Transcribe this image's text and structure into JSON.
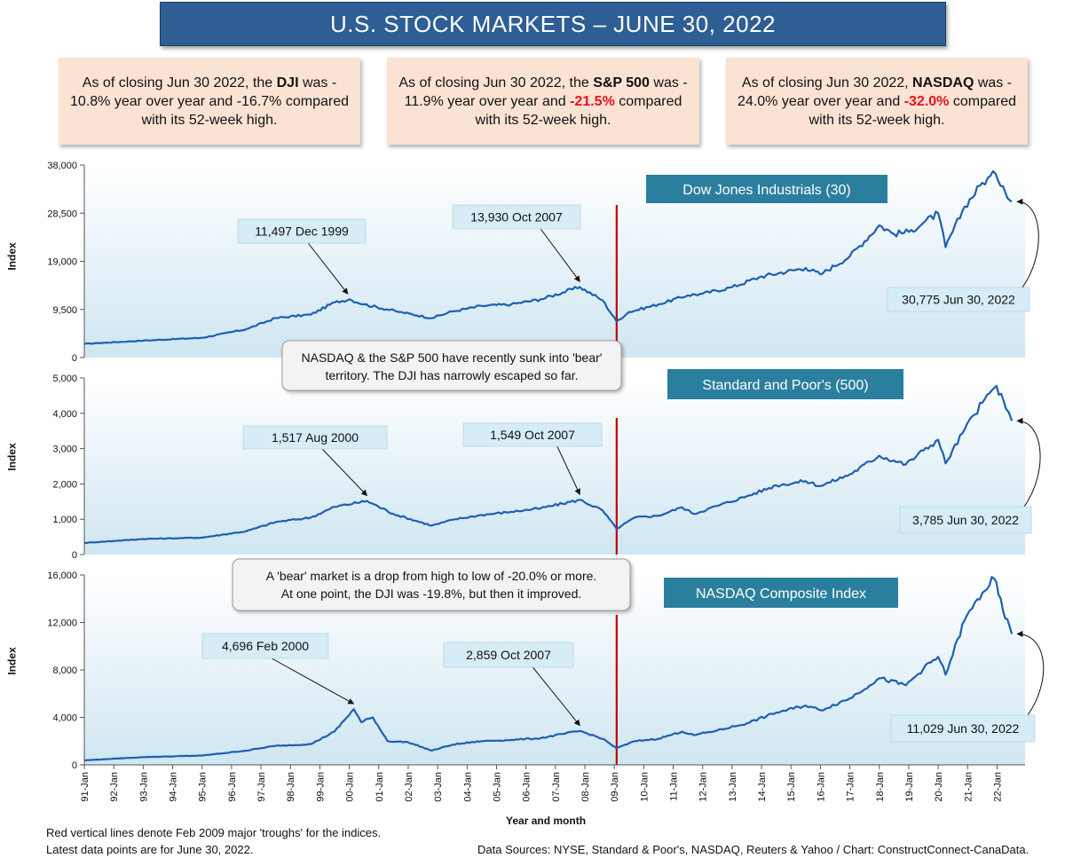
{
  "title": "U.S. STOCK MARKETS – JUNE 30, 2022",
  "notes": [
    {
      "pre": "As of closing Jun 30 2022, the ",
      "bold": "DJI",
      "mid": " was     - 10.8% year over year and ",
      "neg": "-16.7%",
      "post": " compared with its 52-week high.",
      "neg_red": false
    },
    {
      "pre": "As of closing Jun 30 2022, the ",
      "bold": "S&P 500",
      "mid": " was - 11.9% year over year and ",
      "neg": "-21.5%",
      "post": " compared with its 52-week high.",
      "neg_red": true
    },
    {
      "pre": "As of closing Jun 30 2022, ",
      "bold": "NASDAQ",
      "mid": " was - 24.0% year over year and ",
      "neg": "-32.0%",
      "post": " compared with its 52-week high.",
      "neg_red": true
    }
  ],
  "colors": {
    "line": "#1f5fb0",
    "trough": "#c00000",
    "plot_top": "#ffffff",
    "plot_bottom": "#cfe6f1",
    "label_box": "#d6ecf6",
    "title_box": "#2b7f9e"
  },
  "footer": {
    "left1": "Red vertical lines denote Feb 2009 major 'troughs' for the indices.",
    "left2": "Latest data points are for June 30, 2022.",
    "right": "Data Sources:  NYSE, Standard & Poor's, NASDAQ, Reuters & Yahoo / Chart: ConstructConnect-CanaData."
  },
  "chart_data": [
    {
      "type": "line",
      "title": "Dow Jones Industrials (30)",
      "ylabel": "Index",
      "xlabel": "Year and month",
      "ylim": [
        0,
        38000
      ],
      "yticks": [
        "38,000",
        "28,500",
        "19,000",
        "9,500",
        "0"
      ],
      "trough_x": 2009.08,
      "x_range": [
        1991.0,
        2022.5
      ],
      "anchors": [
        [
          1991.0,
          2700
        ],
        [
          1993.0,
          3350
        ],
        [
          1995.0,
          3900
        ],
        [
          1996.5,
          5600
        ],
        [
          1997.5,
          7800
        ],
        [
          1998.7,
          8500
        ],
        [
          1999.5,
          10900
        ],
        [
          2000.0,
          11497
        ],
        [
          2000.5,
          10500
        ],
        [
          2001.7,
          9000
        ],
        [
          2002.8,
          7800
        ],
        [
          2003.5,
          9100
        ],
        [
          2004.5,
          10200
        ],
        [
          2005.5,
          10500
        ],
        [
          2006.5,
          11500
        ],
        [
          2007.83,
          13930
        ],
        [
          2008.6,
          11300
        ],
        [
          2009.08,
          7100
        ],
        [
          2009.5,
          9000
        ],
        [
          2010.5,
          10500
        ],
        [
          2011.5,
          12300
        ],
        [
          2012.0,
          12600
        ],
        [
          2013.0,
          13900
        ],
        [
          2014.0,
          16000
        ],
        [
          2015.5,
          17700
        ],
        [
          2016.0,
          16400
        ],
        [
          2017.0,
          20000
        ],
        [
          2018.0,
          26100
        ],
        [
          2018.5,
          24400
        ],
        [
          2019.0,
          24800
        ],
        [
          2019.5,
          26600
        ],
        [
          2020.0,
          28500
        ],
        [
          2020.25,
          21800
        ],
        [
          2020.9,
          29800
        ],
        [
          2021.5,
          34500
        ],
        [
          2021.95,
          36300
        ],
        [
          2022.2,
          33800
        ],
        [
          2022.5,
          30775
        ]
      ],
      "labels": [
        {
          "text": "11,497 Dec 1999",
          "x": 1999.95,
          "y": 11497
        },
        {
          "text": "13,930 Oct 2007",
          "x": 2007.83,
          "y": 13930
        },
        {
          "text": "30,775 Jun 30, 2022",
          "x": 2022.5,
          "y": 30775
        }
      ]
    },
    {
      "type": "line",
      "title": "Standard and Poor's (500)",
      "ylabel": "Index",
      "ylim": [
        0,
        5000
      ],
      "yticks": [
        "5,000",
        "4,000",
        "3,000",
        "2,000",
        "1,000",
        "0"
      ],
      "trough_x": 2009.08,
      "x_range": [
        1991.0,
        2022.5
      ],
      "anchors": [
        [
          1991.0,
          330
        ],
        [
          1993.0,
          440
        ],
        [
          1995.0,
          480
        ],
        [
          1996.5,
          660
        ],
        [
          1997.5,
          920
        ],
        [
          1998.7,
          1050
        ],
        [
          1999.5,
          1350
        ],
        [
          2000.6,
          1517
        ],
        [
          2001.5,
          1150
        ],
        [
          2002.8,
          820
        ],
        [
          2003.6,
          1000
        ],
        [
          2004.5,
          1120
        ],
        [
          2005.5,
          1210
        ],
        [
          2006.5,
          1310
        ],
        [
          2007.83,
          1549
        ],
        [
          2008.6,
          1250
        ],
        [
          2009.08,
          730
        ],
        [
          2009.7,
          1050
        ],
        [
          2010.5,
          1100
        ],
        [
          2011.3,
          1340
        ],
        [
          2011.7,
          1150
        ],
        [
          2012.5,
          1380
        ],
        [
          2013.5,
          1650
        ],
        [
          2014.5,
          1960
        ],
        [
          2015.5,
          2080
        ],
        [
          2016.0,
          1940
        ],
        [
          2017.0,
          2270
        ],
        [
          2018.0,
          2800
        ],
        [
          2018.9,
          2550
        ],
        [
          2019.5,
          2950
        ],
        [
          2020.0,
          3250
        ],
        [
          2020.25,
          2580
        ],
        [
          2020.9,
          3550
        ],
        [
          2021.5,
          4300
        ],
        [
          2021.98,
          4780
        ],
        [
          2022.3,
          4130
        ],
        [
          2022.5,
          3785
        ]
      ],
      "labels": [
        {
          "text": "1,517 Aug 2000",
          "x": 2000.6,
          "y": 1517
        },
        {
          "text": "1,549 Oct 2007",
          "x": 2007.83,
          "y": 1549
        },
        {
          "text": "3,785 Jun 30, 2022",
          "x": 2022.5,
          "y": 3785
        }
      ]
    },
    {
      "type": "line",
      "title": "NASDAQ Composite Index",
      "ylabel": "Index",
      "xlabel": "Year and month",
      "ylim": [
        0,
        16000
      ],
      "yticks": [
        "16,000",
        "12,000",
        "8,000",
        "4,000",
        "0"
      ],
      "trough_x": 2009.08,
      "x_range": [
        1991.0,
        2022.5
      ],
      "anchors": [
        [
          1991.0,
          380
        ],
        [
          1993.0,
          650
        ],
        [
          1995.0,
          780
        ],
        [
          1996.5,
          1200
        ],
        [
          1997.5,
          1600
        ],
        [
          1998.7,
          1750
        ],
        [
          1999.5,
          2800
        ],
        [
          2000.15,
          4696
        ],
        [
          2000.4,
          3600
        ],
        [
          2000.8,
          4000
        ],
        [
          2001.3,
          2000
        ],
        [
          2002.0,
          1900
        ],
        [
          2002.8,
          1200
        ],
        [
          2003.5,
          1700
        ],
        [
          2004.5,
          2000
        ],
        [
          2005.5,
          2100
        ],
        [
          2006.5,
          2250
        ],
        [
          2007.83,
          2859
        ],
        [
          2008.6,
          2200
        ],
        [
          2009.08,
          1400
        ],
        [
          2009.7,
          2000
        ],
        [
          2010.5,
          2200
        ],
        [
          2011.3,
          2800
        ],
        [
          2011.7,
          2500
        ],
        [
          2012.5,
          2900
        ],
        [
          2013.5,
          3500
        ],
        [
          2014.5,
          4400
        ],
        [
          2015.5,
          5000
        ],
        [
          2016.0,
          4600
        ],
        [
          2017.0,
          5600
        ],
        [
          2018.0,
          7300
        ],
        [
          2018.9,
          6700
        ],
        [
          2019.5,
          8100
        ],
        [
          2020.0,
          9100
        ],
        [
          2020.25,
          7600
        ],
        [
          2020.9,
          12200
        ],
        [
          2021.5,
          14500
        ],
        [
          2021.9,
          15700
        ],
        [
          2022.2,
          13000
        ],
        [
          2022.5,
          11029
        ]
      ],
      "labels": [
        {
          "text": "4,696 Feb 2000",
          "x": 2000.15,
          "y": 4696
        },
        {
          "text": "2,859 Oct 2007",
          "x": 2007.83,
          "y": 2859
        },
        {
          "text": "11,029 Jun 30, 2022",
          "x": 2022.5,
          "y": 11029
        }
      ]
    }
  ],
  "x_ticks": [
    "91-Jan",
    "92-Jan",
    "93-Jan",
    "94-Jan",
    "95-Jan",
    "96-Jan",
    "97-Jan",
    "98-Jan",
    "99-Jan",
    "00-Jan",
    "01-Jan",
    "02-Jan",
    "03-Jan",
    "04-Jan",
    "05-Jan",
    "06-Jan",
    "07-Jan",
    "08-Jan",
    "09-Jan",
    "10-Jan",
    "11-Jan",
    "12-Jan",
    "13-Jan",
    "14-Jan",
    "15-Jan",
    "16-Jan",
    "17-Jan",
    "18-Jan",
    "19-Jan",
    "20-Jan",
    "21-Jan",
    "22-Jan"
  ],
  "callouts": [
    "NASDAQ & the S&P 500 have recently sunk into 'bear' territory. The DJI has narrowly escaped so far.",
    "A 'bear' market is a drop from high to low of -20.0% or more. At one point, the DJI was -19.8%, but then it improved."
  ]
}
